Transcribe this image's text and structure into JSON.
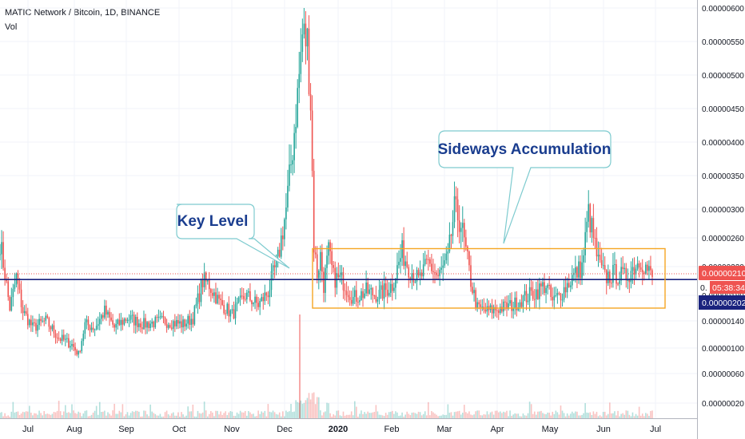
{
  "header": {
    "title": "MATIC Network / Bitcoin, 1D, BINANCE",
    "volume_label": "Vol"
  },
  "chart_data": {
    "type": "candlestick",
    "y_ticks": [
      "0.00000600",
      "0.00000550",
      "0.00000500",
      "0.00000450",
      "0.00000400",
      "0.00000350",
      "0.00000300",
      "0.00000260",
      "0.00000220",
      "0.00000180",
      "0.00000140",
      "0.00000100",
      "0.00000060",
      "0.00000020"
    ],
    "x_ticks": [
      {
        "label": "Jul",
        "bold": false
      },
      {
        "label": "Aug",
        "bold": false
      },
      {
        "label": "Sep",
        "bold": false
      },
      {
        "label": "Oct",
        "bold": false
      },
      {
        "label": "Nov",
        "bold": false
      },
      {
        "label": "Dec",
        "bold": false
      },
      {
        "label": "2020",
        "bold": true
      },
      {
        "label": "Feb",
        "bold": false
      },
      {
        "label": "Mar",
        "bold": false
      },
      {
        "label": "Apr",
        "bold": false
      },
      {
        "label": "May",
        "bold": false
      },
      {
        "label": "Jun",
        "bold": false
      },
      {
        "label": "Jul",
        "bold": false
      }
    ],
    "key_level": 2.02e-06,
    "last_price": 2.1e-06,
    "range_box": {
      "top": 2.45e-06,
      "bottom": 1.6e-06
    },
    "badges": {
      "last_price": "0.00000210",
      "countdown": "05:38:34",
      "key_level": "0.00000202",
      "obscured_label": "0."
    },
    "annotations": [
      {
        "text": "Key Level"
      },
      {
        "text": "Sideways Accumulation"
      }
    ],
    "colors": {
      "up": "#26a69a",
      "down": "#ef5350",
      "key_level_line": "#1a237e",
      "box": "#f5a623",
      "callout_border": "#7ecbcf",
      "callout_text": "#1a3d8f",
      "price_line": "#ef5350"
    }
  }
}
